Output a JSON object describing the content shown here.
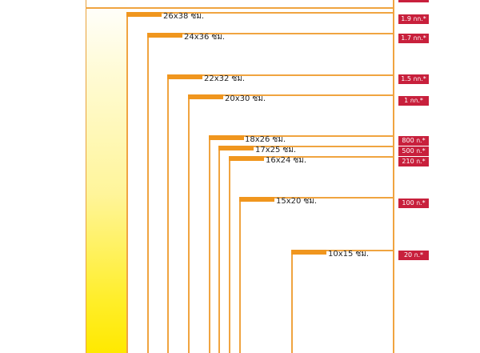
{
  "sizes": [
    {
      "label": "26x38 ซม.",
      "weight": "1.9 กก.*"
    },
    {
      "label": "24x36 ซม.",
      "weight": "1.7 กก.*"
    },
    {
      "label": "22x32 ซม.",
      "weight": "1.5 กก.*"
    },
    {
      "label": "20x30 ซม.",
      "weight": "1 กก.*"
    },
    {
      "label": "18x26 ซม.",
      "weight": "800 ก.*"
    },
    {
      "label": "17x25 ซม.",
      "weight": "500 ก.*"
    },
    {
      "label": "16x24 ซม.",
      "weight": "210 ก.*"
    },
    {
      "label": "15x20 ซม.",
      "weight": "100 ก.*"
    },
    {
      "label": "10x15 ซม.",
      "weight": "20 ก.*"
    }
  ],
  "colors": {
    "accent": "#f0961e",
    "line": "#f0a440",
    "badge": "#c8203c"
  }
}
